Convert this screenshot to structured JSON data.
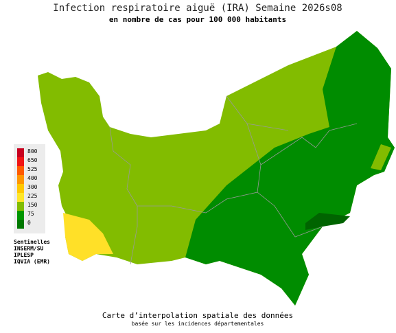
{
  "header": {
    "title": "Infection respiratoire aiguë (IRA) Semaine 2026s08",
    "subtitle": "en nombre de cas pour 100 000 habitants"
  },
  "legend": {
    "items": [
      {
        "label": "800",
        "color": "#c8001e"
      },
      {
        "label": "650",
        "color": "#f01414"
      },
      {
        "label": "525",
        "color": "#ff5a00"
      },
      {
        "label": "400",
        "color": "#ff9600"
      },
      {
        "label": "300",
        "color": "#ffc800"
      },
      {
        "label": "225",
        "color": "#ffe628"
      },
      {
        "label": "150",
        "color": "#82bc00"
      },
      {
        "label": "75",
        "color": "#009600"
      },
      {
        "label": "0",
        "color": "#007800"
      }
    ]
  },
  "sources": [
    "Sentinelles",
    "INSERM/SU",
    "IPLESP",
    "IQVIA (EMR)"
  ],
  "footer": {
    "line1": "Carte d’interpolation spatiale des données",
    "line2": "basée sur les incidences départementales"
  }
}
